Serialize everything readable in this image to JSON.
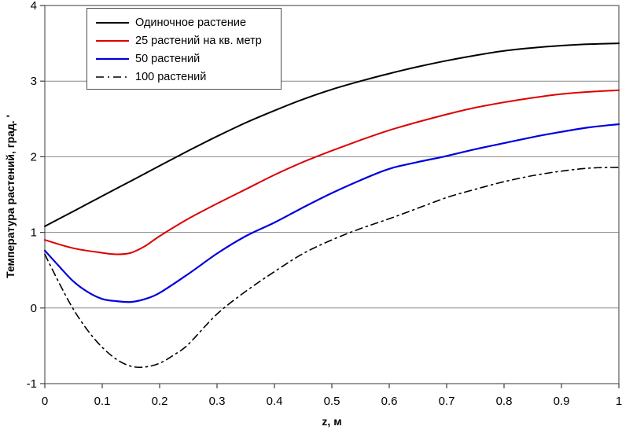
{
  "figure": {
    "background": "#ffffff",
    "plot_border_color": "#595959",
    "gridline_color": "#888888",
    "tick_color": "#404040"
  },
  "chart_data": {
    "type": "line",
    "title": "",
    "xlabel": "z, м",
    "ylabel": "Температура растений, град. '",
    "xlim": [
      0,
      1
    ],
    "ylim": [
      -1,
      4
    ],
    "x_ticks": [
      0,
      0.1,
      0.2,
      0.3,
      0.4,
      0.5,
      0.6,
      0.7,
      0.8,
      0.9,
      1
    ],
    "x_tick_labels": [
      "0",
      "0.1",
      "0.2",
      "0.3",
      "0.4",
      "0.5",
      "0.6",
      "0.7",
      "0.8",
      "0.9",
      "1"
    ],
    "y_ticks": [
      -1,
      0,
      1,
      2,
      3,
      4
    ],
    "y_tick_labels": [
      "-1",
      "0",
      "1",
      "2",
      "3",
      "4"
    ],
    "grid": "horizontal-only",
    "legend_position": "top-left",
    "series": [
      {
        "name": "Одиночное растение",
        "color": "#000000",
        "style": "solid",
        "width": 2,
        "x": [
          0,
          0.05,
          0.1,
          0.15,
          0.2,
          0.25,
          0.3,
          0.35,
          0.4,
          0.45,
          0.5,
          0.55,
          0.6,
          0.65,
          0.7,
          0.75,
          0.8,
          0.85,
          0.9,
          0.95,
          1
        ],
        "y": [
          1.08,
          1.28,
          1.48,
          1.68,
          1.88,
          2.08,
          2.27,
          2.45,
          2.61,
          2.76,
          2.89,
          3.0,
          3.1,
          3.19,
          3.27,
          3.34,
          3.4,
          3.44,
          3.47,
          3.49,
          3.5
        ]
      },
      {
        "name": "25 растений на кв. метр",
        "color": "#dd0000",
        "style": "solid",
        "width": 2,
        "x": [
          0,
          0.05,
          0.1,
          0.125,
          0.15,
          0.175,
          0.2,
          0.25,
          0.3,
          0.35,
          0.4,
          0.45,
          0.5,
          0.55,
          0.6,
          0.65,
          0.7,
          0.75,
          0.8,
          0.85,
          0.9,
          0.95,
          1
        ],
        "y": [
          0.9,
          0.79,
          0.73,
          0.71,
          0.73,
          0.82,
          0.95,
          1.18,
          1.38,
          1.57,
          1.76,
          1.93,
          2.08,
          2.22,
          2.35,
          2.46,
          2.56,
          2.65,
          2.72,
          2.78,
          2.83,
          2.86,
          2.88
        ]
      },
      {
        "name": "50 растений",
        "color": "#0000dd",
        "style": "solid",
        "width": 2.2,
        "x": [
          0,
          0.025,
          0.05,
          0.075,
          0.1,
          0.125,
          0.15,
          0.175,
          0.2,
          0.25,
          0.3,
          0.35,
          0.4,
          0.45,
          0.5,
          0.55,
          0.6,
          0.65,
          0.7,
          0.75,
          0.8,
          0.85,
          0.9,
          0.95,
          1
        ],
        "y": [
          0.76,
          0.55,
          0.35,
          0.21,
          0.12,
          0.09,
          0.08,
          0.12,
          0.2,
          0.45,
          0.72,
          0.95,
          1.13,
          1.33,
          1.52,
          1.69,
          1.84,
          1.93,
          2.01,
          2.1,
          2.18,
          2.26,
          2.33,
          2.39,
          2.43
        ]
      },
      {
        "name": "100 растений",
        "color": "#000000",
        "style": "dashed",
        "width": 1.6,
        "x": [
          0,
          0.025,
          0.05,
          0.075,
          0.1,
          0.125,
          0.15,
          0.175,
          0.2,
          0.225,
          0.25,
          0.3,
          0.35,
          0.4,
          0.45,
          0.5,
          0.55,
          0.6,
          0.65,
          0.7,
          0.75,
          0.8,
          0.85,
          0.9,
          0.95,
          1
        ],
        "y": [
          0.71,
          0.33,
          -0.02,
          -0.3,
          -0.52,
          -0.68,
          -0.77,
          -0.78,
          -0.73,
          -0.62,
          -0.48,
          -0.08,
          0.22,
          0.48,
          0.72,
          0.9,
          1.05,
          1.18,
          1.32,
          1.46,
          1.57,
          1.67,
          1.75,
          1.81,
          1.85,
          1.86
        ]
      }
    ]
  }
}
